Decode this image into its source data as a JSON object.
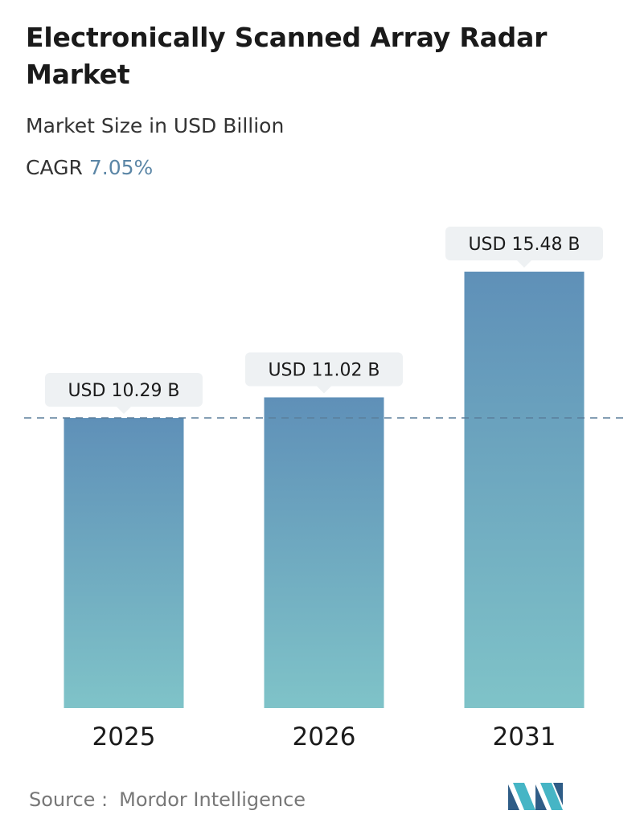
{
  "header": {
    "title": "Electronically Scanned Array Radar Market",
    "subtitle": "Market Size in USD Billion",
    "cagr_label": "CAGR",
    "cagr_value": "7.05%"
  },
  "chart_data": {
    "type": "bar",
    "categories": [
      "2025",
      "2026",
      "2031"
    ],
    "values": [
      10.29,
      11.02,
      15.48
    ],
    "data_labels": [
      "USD 10.29 B",
      "USD 11.02 B",
      "USD 15.48 B"
    ],
    "title": "Electronically Scanned Array Radar Market",
    "subtitle": "Market Size in USD Billion",
    "xlabel": "",
    "ylabel": "",
    "ylim": [
      0,
      15.48
    ],
    "grid": false,
    "reference_line": 10.29,
    "colors": {
      "bar_top": "#5f90b8",
      "bar_bottom": "#7fc3c8",
      "label_bg": "#eef1f3",
      "reference_line": "#5b7f9c"
    }
  },
  "footer": {
    "source_label": "Source :",
    "source_value": "Mordor Intelligence",
    "logo_icon": "mordor-intelligence-logo",
    "logo_colors": [
      "#2f5d87",
      "#46b5c5"
    ]
  }
}
